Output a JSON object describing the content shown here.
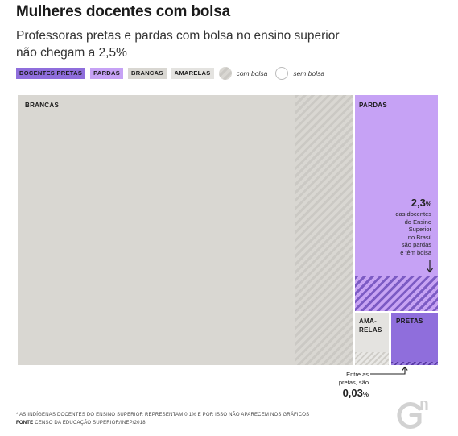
{
  "title": "Mulheres docentes com bolsa",
  "subtitle": "Professoras pretas e pardas com bolsa no ensino superior não chegam a 2,5%",
  "legend": {
    "categories": [
      {
        "label": "DOCENTES PRETAS",
        "color": "#8f6edc"
      },
      {
        "label": "PARDAS",
        "color": "#c6a2f5"
      },
      {
        "label": "BRANCAS",
        "color": "#d9d7d2"
      },
      {
        "label": "AMARELAS",
        "color": "#e4e3e0"
      }
    ],
    "com_bolsa": "com bolsa",
    "sem_bolsa": "sem bolsa"
  },
  "chart_data": {
    "type": "treemap",
    "title": "Mulheres docentes com bolsa",
    "subtitle": "Professoras pretas e pardas com bolsa no ensino superior não chegam a 2,5%",
    "unit": "%",
    "groups": [
      {
        "name": "BRANCAS",
        "label": "BRANCAS",
        "share": 75.2,
        "com_bolsa": 12.6,
        "color": "#d9d7d2"
      },
      {
        "name": "PARDAS",
        "label": "PARDAS",
        "share": 19.6,
        "com_bolsa": 2.3,
        "color": "#c6a2f5"
      },
      {
        "name": "AMARELAS",
        "label": "AMA-\nRELAS",
        "share": 2.1,
        "com_bolsa": 0.3,
        "color": "#e4e3e0"
      },
      {
        "name": "PRETAS",
        "label": "PRETAS",
        "share": 3.0,
        "com_bolsa": 0.03,
        "color": "#8f6edc"
      }
    ],
    "annotations": {
      "pardas": {
        "value": "2,3",
        "unit": "%",
        "text": [
          "das docentes",
          "do Ensino",
          "Superior",
          "no Brasil",
          "são pardas",
          "e têm bolsa"
        ]
      },
      "pretas": {
        "value": "0,03",
        "unit": "%",
        "text": [
          "Entre as",
          "pretas, são"
        ]
      }
    }
  },
  "footnote": "* AS INDÍGENAS DOCENTES DO ENSINO SUPERIOR REPRESENTAM 0,1% E POR ISSO NÃO APARECEM NOS GRÁFICOS",
  "source_label": "FONTE",
  "source_text": "CENSO DA EDUCAÇÃO SUPERIOR/INEP/2018"
}
